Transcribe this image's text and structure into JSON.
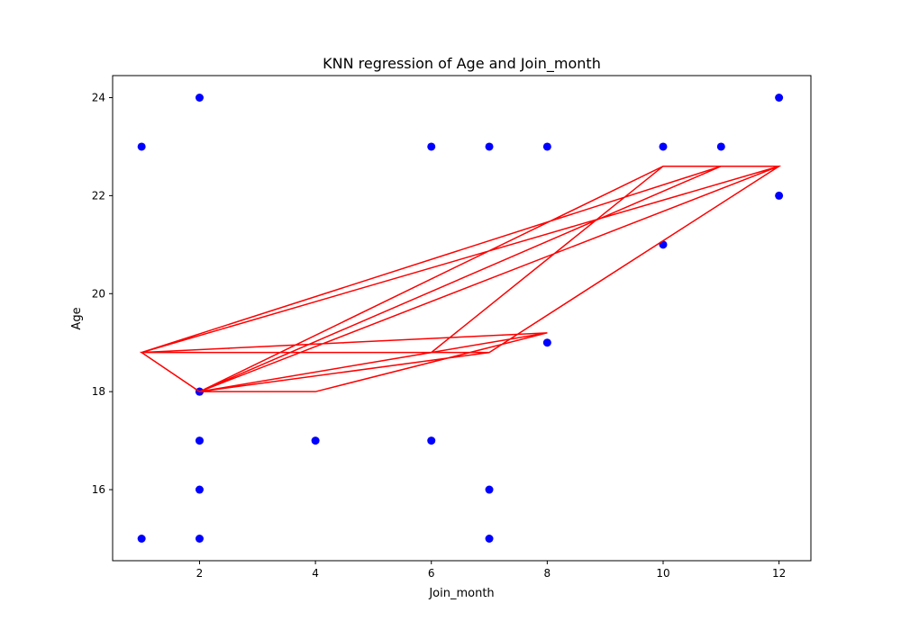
{
  "chart_data": {
    "type": "scatter",
    "title": "KNN regression of Age and Join_month",
    "xlabel": "Join_month",
    "ylabel": "Age",
    "xlim": [
      0.5,
      12.55
    ],
    "ylim": [
      14.55,
      24.45
    ],
    "xticks": [
      2,
      4,
      6,
      8,
      10,
      12
    ],
    "yticks": [
      16,
      18,
      20,
      22,
      24
    ],
    "grid": false,
    "legend": "none",
    "colors": {
      "scatter": "#0000ff",
      "line": "#ff0000"
    },
    "series": [
      {
        "kind": "scatter",
        "x": [
          1,
          2,
          2,
          6,
          7,
          8,
          10,
          11,
          12,
          12,
          10,
          8,
          2,
          2,
          4,
          6,
          2,
          7,
          1,
          2,
          7
        ],
        "y": [
          23,
          24,
          18,
          23,
          23,
          23,
          23,
          23,
          24,
          22,
          21,
          19,
          18,
          17,
          17,
          17,
          16,
          16,
          15,
          15,
          15
        ]
      },
      {
        "kind": "line",
        "x": [
          1,
          2,
          6,
          10,
          12,
          7,
          2,
          11,
          12,
          2,
          10,
          11,
          1,
          8,
          2,
          7,
          1,
          2,
          4,
          8,
          2,
          12,
          1,
          2
        ],
        "y": [
          18.8,
          18.0,
          18.8,
          22.6,
          22.6,
          18.8,
          18.0,
          22.6,
          22.6,
          18.0,
          22.6,
          22.6,
          18.8,
          19.2,
          18.0,
          18.8,
          18.8,
          18.0,
          18.0,
          19.2,
          18.0,
          22.6,
          18.8,
          18.0
        ]
      }
    ]
  }
}
